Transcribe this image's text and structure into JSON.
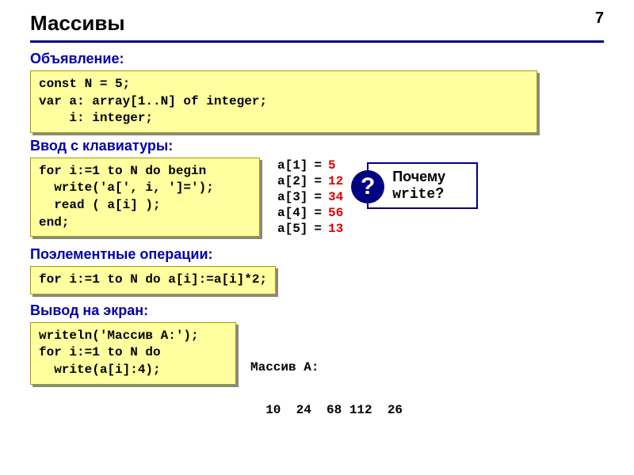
{
  "page_number": "7",
  "title": "Массивы",
  "colors": {
    "rule": "#000080",
    "section_label": "#0000aa",
    "code_bg": "#ffffa0",
    "code_border": "#a0a000",
    "shadow": "#888888",
    "highlight_red": "#e00000",
    "balloon_border": "#000080",
    "qmark_bg": "#000080"
  },
  "sections": {
    "decl": {
      "label": "Объявление:",
      "code": "const N = 5;\nvar a: array[1..N] of integer;\n    i: integer;"
    },
    "input": {
      "label": "Ввод с клавиатуры:",
      "code": "for i:=1 to N do begin\n  write('a[', i, ']=');\n  read ( a[i] );\nend;"
    },
    "elem": {
      "label": "Поэлементные операции:",
      "code": "for i:=1 to N do a[i]:=a[i]*2;"
    },
    "out": {
      "label": "Вывод на экран:",
      "code": "writeln('Массив A:');\nfor i:=1 to N do\n  write(a[i]:4);"
    }
  },
  "array_values": [
    {
      "idx": "a[1]",
      "eq": "=",
      "val": "5"
    },
    {
      "idx": "a[2]",
      "eq": "=",
      "val": "12"
    },
    {
      "idx": "a[3]",
      "eq": "=",
      "val": "34"
    },
    {
      "idx": "a[4]",
      "eq": "=",
      "val": "56"
    },
    {
      "idx": "a[5]",
      "eq": "=",
      "val": "13"
    }
  ],
  "balloon": {
    "q": "?",
    "line1": "Почему",
    "line2_code": "write",
    "line2_tail": "?"
  },
  "output_block": {
    "header": "Массив A:",
    "values": "  10  24  68 112  26"
  }
}
